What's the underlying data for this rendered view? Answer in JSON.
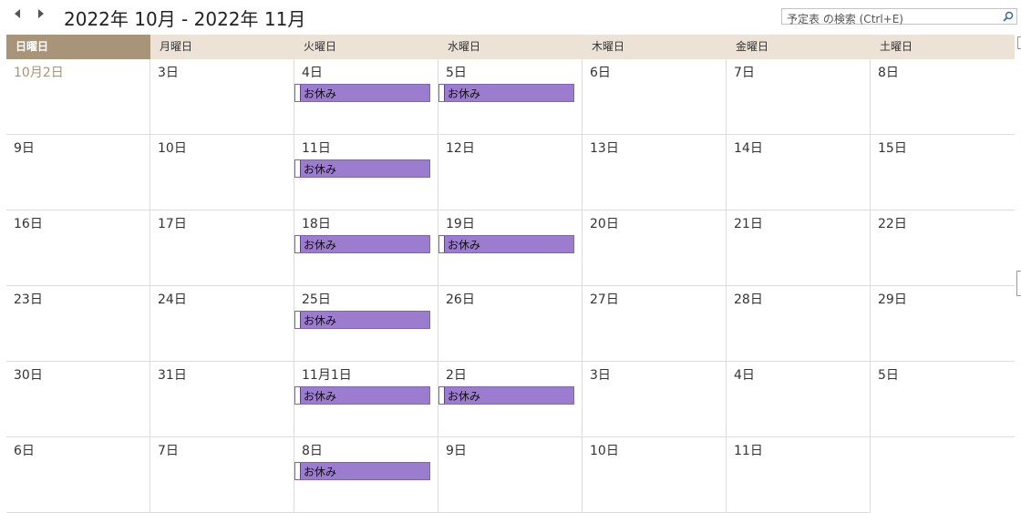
{
  "toolbar": {
    "range_title": "2022年 10月 - 2022年 11月",
    "search_placeholder": "予定表 の検索 (Ctrl+E)"
  },
  "weekdays": [
    "日曜日",
    "月曜日",
    "火曜日",
    "水曜日",
    "木曜日",
    "金曜日",
    "土曜日"
  ],
  "active_weekday_index": 0,
  "weeks": [
    {
      "days": [
        {
          "date": "10月2日",
          "muted": true
        },
        {
          "date": "3日"
        },
        {
          "date": "4日",
          "event": "お休み"
        },
        {
          "date": "5日",
          "event": "お休み"
        },
        {
          "date": "6日"
        },
        {
          "date": "7日"
        },
        {
          "date": "8日"
        }
      ]
    },
    {
      "days": [
        {
          "date": "9日"
        },
        {
          "date": "10日"
        },
        {
          "date": "11日",
          "event": "お休み"
        },
        {
          "date": "12日"
        },
        {
          "date": "13日"
        },
        {
          "date": "14日"
        },
        {
          "date": "15日"
        }
      ]
    },
    {
      "days": [
        {
          "date": "16日"
        },
        {
          "date": "17日"
        },
        {
          "date": "18日",
          "event": "お休み"
        },
        {
          "date": "19日",
          "event": "お休み"
        },
        {
          "date": "20日"
        },
        {
          "date": "21日"
        },
        {
          "date": "22日"
        }
      ]
    },
    {
      "days": [
        {
          "date": "23日"
        },
        {
          "date": "24日"
        },
        {
          "date": "25日",
          "event": "お休み"
        },
        {
          "date": "26日"
        },
        {
          "date": "27日"
        },
        {
          "date": "28日"
        },
        {
          "date": "29日"
        }
      ]
    },
    {
      "days": [
        {
          "date": "30日"
        },
        {
          "date": "31日"
        },
        {
          "date": "11月1日",
          "event": "お休み"
        },
        {
          "date": "2日",
          "event": "お休み"
        },
        {
          "date": "3日"
        },
        {
          "date": "4日"
        },
        {
          "date": "5日"
        }
      ]
    },
    {
      "days": [
        {
          "date": "6日"
        },
        {
          "date": "7日"
        },
        {
          "date": "8日",
          "event": "お休み"
        },
        {
          "date": "9日"
        },
        {
          "date": "10日"
        },
        {
          "date": "11日"
        },
        {
          "blank": true
        }
      ]
    }
  ],
  "colors": {
    "event_fill": "#9b7ccf",
    "header_active": "#a89479",
    "header_bg": "#ece3d6"
  }
}
